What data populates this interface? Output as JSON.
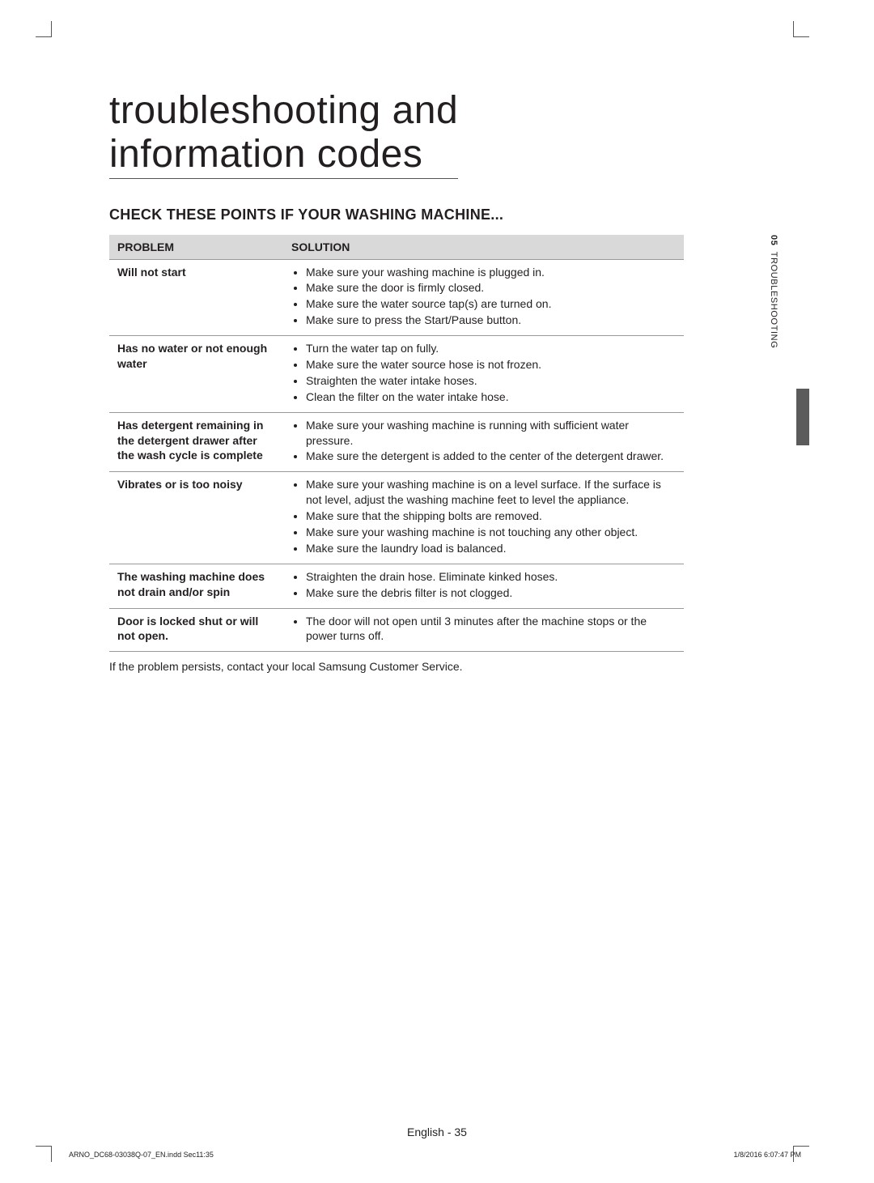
{
  "title_line1": "troubleshooting and",
  "title_line2": "information codes",
  "section_heading": "CHECK THESE POINTS IF YOUR WASHING MACHINE...",
  "table": {
    "headers": {
      "problem": "PROBLEM",
      "solution": "SOLUTION"
    },
    "rows": [
      {
        "problem": "Will not start",
        "solutions": [
          "Make sure your washing machine is plugged in.",
          "Make sure the door is firmly closed.",
          "Make sure the water source tap(s) are turned on.",
          "Make sure to press the Start/Pause button."
        ]
      },
      {
        "problem": "Has no water or not enough water",
        "solutions": [
          "Turn the water tap on fully.",
          "Make sure the water source hose is not frozen.",
          "Straighten the water intake hoses.",
          "Clean the filter on the water intake hose."
        ]
      },
      {
        "problem": "Has detergent remaining in the detergent drawer after the wash cycle is complete",
        "solutions": [
          "Make sure your washing machine is running with sufficient water pressure.",
          "Make sure the detergent is added to the center of the detergent drawer."
        ]
      },
      {
        "problem": "Vibrates or is too noisy",
        "solutions": [
          "Make sure your washing machine is on a level surface. If the surface is not level, adjust the washing machine feet to level the appliance.",
          "Make sure that the shipping bolts are removed.",
          "Make sure your washing machine is not touching any other object.",
          "Make sure the laundry load is balanced."
        ]
      },
      {
        "problem": "The washing machine does not drain and/or spin",
        "solutions": [
          "Straighten the drain hose. Eliminate kinked hoses.",
          "Make sure the debris filter is not clogged."
        ]
      },
      {
        "problem": "Door is locked shut or will not open.",
        "solutions": [
          "The door will not open until 3 minutes after the machine stops or the power turns off."
        ]
      }
    ]
  },
  "after_table_note": "If the problem persists, contact your local Samsung Customer Service.",
  "sidebar": {
    "number": "05",
    "label": "TROUBLESHOOTING"
  },
  "footer": {
    "center_lang": "English",
    "center_sep": " - ",
    "center_page": "35",
    "left": "ARNO_DC68-03038Q-07_EN.indd   Sec11:35",
    "right": "1/8/2016   6:07:47 PM"
  },
  "colors": {
    "header_bg": "#d9d9d9",
    "rule": "#999999",
    "text": "#231f20",
    "tab": "#5b5b5b"
  }
}
